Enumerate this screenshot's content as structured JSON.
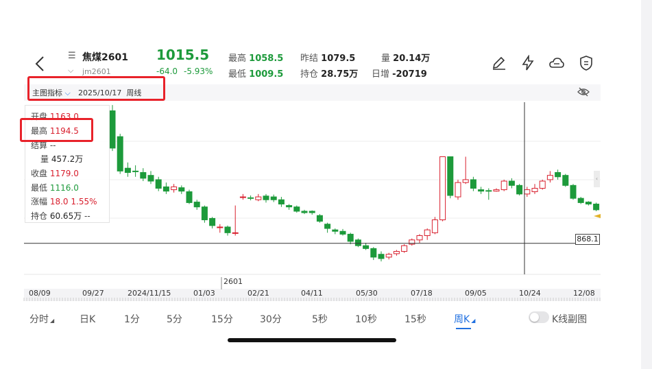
{
  "header": {
    "menu_icon": "menu-icon",
    "name": "焦煤2601",
    "code": "jm2601",
    "price": "1015.5",
    "change": "-64.0",
    "change_pct": "-5.93%",
    "stats": {
      "high_label": "最高",
      "high": "1058.5",
      "low_label": "最低",
      "low": "1009.5",
      "prev_settle_label": "昨结",
      "prev_settle": "1079.5",
      "open_interest_label": "持仓",
      "open_interest": "28.75万",
      "volume_label": "量",
      "volume": "20.14万",
      "daily_add_label": "日增",
      "daily_add": "-20719"
    },
    "icons": [
      "pen-icon",
      "lightning-icon",
      "cloud-icon",
      "shield-icon"
    ]
  },
  "indicator_bar": {
    "label": "主图指标",
    "date": "2025/10/17",
    "period": "周线",
    "eye_icon": "eye-hidden-icon"
  },
  "info_panel": {
    "open_label": "开盘",
    "open": "1163.0",
    "high_label": "最高",
    "high": "1194.5",
    "settle_label": "结算",
    "settle": "--",
    "volume_label": "量",
    "volume": "457.2万",
    "close_label": "收盘",
    "close": "1179.0",
    "low_label": "最低",
    "low": "1116.0",
    "change_label": "涨幅",
    "change": "18.0",
    "change_pct": "1.55%",
    "oi_label": "持仓",
    "oi": "60.65万",
    "oi_change": "--"
  },
  "chart": {
    "price_tag": "868.1",
    "contract_label": "2601",
    "colors": {
      "up": "#d81e2c",
      "down": "#1d9a3b",
      "highlight": "#e8222a",
      "accent": "#1f6fe0"
    }
  },
  "chart_data": {
    "type": "candlestick",
    "x_labels": [
      "08/09",
      "09/27",
      "2024/11/15",
      "01/03",
      "02/21",
      "04/11",
      "05/30",
      "07/18",
      "09/05",
      "10/24",
      "12/08"
    ],
    "horizontal_line": 868.1,
    "crosshair_date": "2025/10/17",
    "candles": [
      {
        "o": 1330,
        "c": 1200,
        "h": 1350,
        "l": 1190
      },
      {
        "o": 1240,
        "c": 1120,
        "h": 1250,
        "l": 1110
      },
      {
        "o": 1130,
        "c": 1115,
        "h": 1150,
        "l": 1100
      },
      {
        "o": 1120,
        "c": 1118,
        "h": 1140,
        "l": 1100
      },
      {
        "o": 1115,
        "c": 1095,
        "h": 1130,
        "l": 1085
      },
      {
        "o": 1105,
        "c": 1085,
        "h": 1120,
        "l": 1075
      },
      {
        "o": 1090,
        "c": 1060,
        "h": 1100,
        "l": 1050
      },
      {
        "o": 1065,
        "c": 1050,
        "h": 1080,
        "l": 1040
      },
      {
        "o": 1055,
        "c": 1065,
        "h": 1075,
        "l": 1045
      },
      {
        "o": 1062,
        "c": 1050,
        "h": 1070,
        "l": 1040
      },
      {
        "o": 1048,
        "c": 1010,
        "h": 1055,
        "l": 1005
      },
      {
        "o": 1012,
        "c": 995,
        "h": 1020,
        "l": 985
      },
      {
        "o": 995,
        "c": 950,
        "h": 1000,
        "l": 940
      },
      {
        "o": 955,
        "c": 930,
        "h": 960,
        "l": 920
      },
      {
        "o": 925,
        "c": 925,
        "h": 935,
        "l": 905
      },
      {
        "o": 925,
        "c": 905,
        "h": 930,
        "l": 895
      },
      {
        "o": 905,
        "c": 905,
        "h": 1000,
        "l": 895
      },
      {
        "o": 1030,
        "c": 1030,
        "h": 1040,
        "l": 1020
      },
      {
        "o": 1027,
        "c": 1025,
        "h": 1035,
        "l": 1018
      },
      {
        "o": 1020,
        "c": 1030,
        "h": 1040,
        "l": 1015
      },
      {
        "o": 1033,
        "c": 1020,
        "h": 1040,
        "l": 1010
      },
      {
        "o": 1030,
        "c": 1020,
        "h": 1038,
        "l": 1012
      },
      {
        "o": 1020,
        "c": 1005,
        "h": 1030,
        "l": 995
      },
      {
        "o": 1000,
        "c": 995,
        "h": 1005,
        "l": 985
      },
      {
        "o": 995,
        "c": 980,
        "h": 1000,
        "l": 975
      },
      {
        "o": 980,
        "c": 975,
        "h": 985,
        "l": 970
      },
      {
        "o": 980,
        "c": 975,
        "h": 983,
        "l": 968
      },
      {
        "o": 965,
        "c": 945,
        "h": 970,
        "l": 940
      },
      {
        "o": 935,
        "c": 920,
        "h": 940,
        "l": 905
      },
      {
        "o": 915,
        "c": 910,
        "h": 920,
        "l": 900
      },
      {
        "o": 910,
        "c": 900,
        "h": 918,
        "l": 895
      },
      {
        "o": 900,
        "c": 875,
        "h": 905,
        "l": 865
      },
      {
        "o": 880,
        "c": 860,
        "h": 885,
        "l": 855
      },
      {
        "o": 860,
        "c": 850,
        "h": 870,
        "l": 845
      },
      {
        "o": 850,
        "c": 820,
        "h": 855,
        "l": 810
      },
      {
        "o": 830,
        "c": 815,
        "h": 840,
        "l": 805
      },
      {
        "o": 820,
        "c": 830,
        "h": 835,
        "l": 812
      },
      {
        "o": 832,
        "c": 840,
        "h": 845,
        "l": 825
      },
      {
        "o": 840,
        "c": 860,
        "h": 865,
        "l": 835
      },
      {
        "o": 865,
        "c": 880,
        "h": 885,
        "l": 860
      },
      {
        "o": 880,
        "c": 895,
        "h": 900,
        "l": 870
      },
      {
        "o": 895,
        "c": 915,
        "h": 920,
        "l": 880
      },
      {
        "o": 905,
        "c": 950,
        "h": 960,
        "l": 900
      },
      {
        "o": 950,
        "c": 1170,
        "h": 1170,
        "l": 945
      },
      {
        "o": 1170,
        "c": 1035,
        "h": 1170,
        "l": 1025
      },
      {
        "o": 1030,
        "c": 1080,
        "h": 1090,
        "l": 1020
      },
      {
        "o": 1080,
        "c": 1090,
        "h": 1170,
        "l": 1075
      },
      {
        "o": 1090,
        "c": 1060,
        "h": 1100,
        "l": 1050
      },
      {
        "o": 1055,
        "c": 1050,
        "h": 1065,
        "l": 1040
      },
      {
        "o": 1052,
        "c": 1050,
        "h": 1060,
        "l": 1020
      },
      {
        "o": 1050,
        "c": 1055,
        "h": 1060,
        "l": 1048
      },
      {
        "o": 1055,
        "c": 1085,
        "h": 1090,
        "l": 1050
      },
      {
        "o": 1085,
        "c": 1070,
        "h": 1095,
        "l": 1060
      },
      {
        "o": 1070,
        "c": 1040,
        "h": 1075,
        "l": 1035
      },
      {
        "o": 1040,
        "c": 1055,
        "h": 1065,
        "l": 1030
      },
      {
        "o": 1048,
        "c": 1060,
        "h": 1075,
        "l": 1040
      },
      {
        "o": 1060,
        "c": 1085,
        "h": 1090,
        "l": 1055
      },
      {
        "o": 1090,
        "c": 1105,
        "h": 1120,
        "l": 1080
      },
      {
        "o": 1115,
        "c": 1100,
        "h": 1125,
        "l": 1090
      },
      {
        "o": 1105,
        "c": 1070,
        "h": 1110,
        "l": 1065
      },
      {
        "o": 1070,
        "c": 1025,
        "h": 1075,
        "l": 1020
      },
      {
        "o": 1025,
        "c": 1010,
        "h": 1030,
        "l": 1005
      },
      {
        "o": 1012,
        "c": 1005,
        "h": 1015,
        "l": 1000
      },
      {
        "o": 1005,
        "c": 985,
        "h": 1010,
        "l": 980
      }
    ]
  },
  "tabs": [
    {
      "label": "分时",
      "active": false,
      "arrow": true
    },
    {
      "label": "日K",
      "active": false
    },
    {
      "label": "1分",
      "active": false
    },
    {
      "label": "5分",
      "active": false
    },
    {
      "label": "15分",
      "active": false
    },
    {
      "label": "30分",
      "active": false
    },
    {
      "label": "5秒",
      "active": false
    },
    {
      "label": "10秒",
      "active": false
    },
    {
      "label": "15秒",
      "active": false
    },
    {
      "label": "周K",
      "active": true,
      "arrow": true
    }
  ],
  "subchart_toggle": {
    "label": "K线副图",
    "on": false
  }
}
